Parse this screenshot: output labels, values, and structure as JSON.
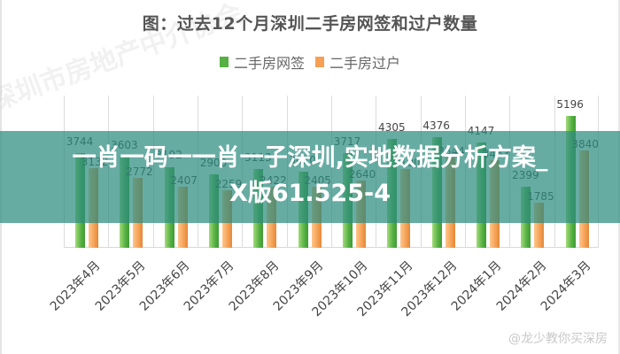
{
  "chart_data": {
    "type": "bar",
    "title": "图：过去12个月深圳二手房网签和过户数量",
    "xlabel": "",
    "ylabel": "",
    "ylim": [
      0,
      6000
    ],
    "grid": "vertical",
    "legend_position": "top",
    "categories": [
      "2023年4月",
      "2023年5月",
      "2023年6月",
      "2023年7月",
      "2023年8月",
      "2023年9月",
      "2023年10月",
      "2023年11月",
      "2023年12月",
      "2024年1月",
      "2024年2月",
      "2024年3月"
    ],
    "series": [
      {
        "name": "二手房网签",
        "color": "#56b043",
        "values": [
          3744,
          3603,
          3192,
          2900,
          3113,
          3010,
          3717,
          4305,
          4376,
          4147,
          2399,
          5196
        ]
      },
      {
        "name": "二手房过户",
        "color": "#f5a054",
        "values": [
          3132,
          2772,
          2407,
          2259,
          2422,
          2405,
          2640,
          3100,
          3544,
          3463,
          1785,
          3840
        ]
      }
    ]
  },
  "title": "图：过去12个月深圳二手房网签和过户数量",
  "legend": [
    {
      "label": "二手房网签",
      "color": "#56b043"
    },
    {
      "label": "二手房过户",
      "color": "#f5a054"
    }
  ],
  "banner": {
    "line1": "一肖一码一一肖一子深圳,实地数据分析方案_",
    "line2": "X版61.525-4"
  },
  "watermark": "@龙少教你买深房",
  "diagonal_watermark": "深圳市房地产中介协会"
}
